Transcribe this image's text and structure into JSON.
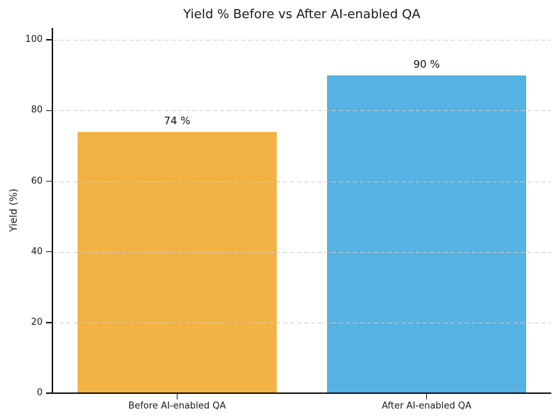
{
  "figure": {
    "background": "#ffffff",
    "text_color": "#1a1a1a",
    "axis_color": "#111111",
    "grid_color": "#cccccc"
  },
  "chart_data": {
    "type": "bar",
    "title": "Yield % Before vs After AI-enabled QA",
    "xlabel": "",
    "ylabel": "Yield (%)",
    "categories": [
      "Before AI-enabled QA",
      "After AI-enabled QA"
    ],
    "values": [
      74,
      90
    ],
    "value_labels": [
      "74 %",
      "90 %"
    ],
    "bar_colors": [
      "#F2B344",
      "#56B2E2"
    ],
    "yticks": [
      0,
      20,
      40,
      60,
      80,
      100
    ],
    "ylim": [
      0,
      103.4
    ],
    "grid": "horizontal-dashed",
    "grid_above_bars": true,
    "legend": "none",
    "bar_width_fraction": 0.8
  }
}
